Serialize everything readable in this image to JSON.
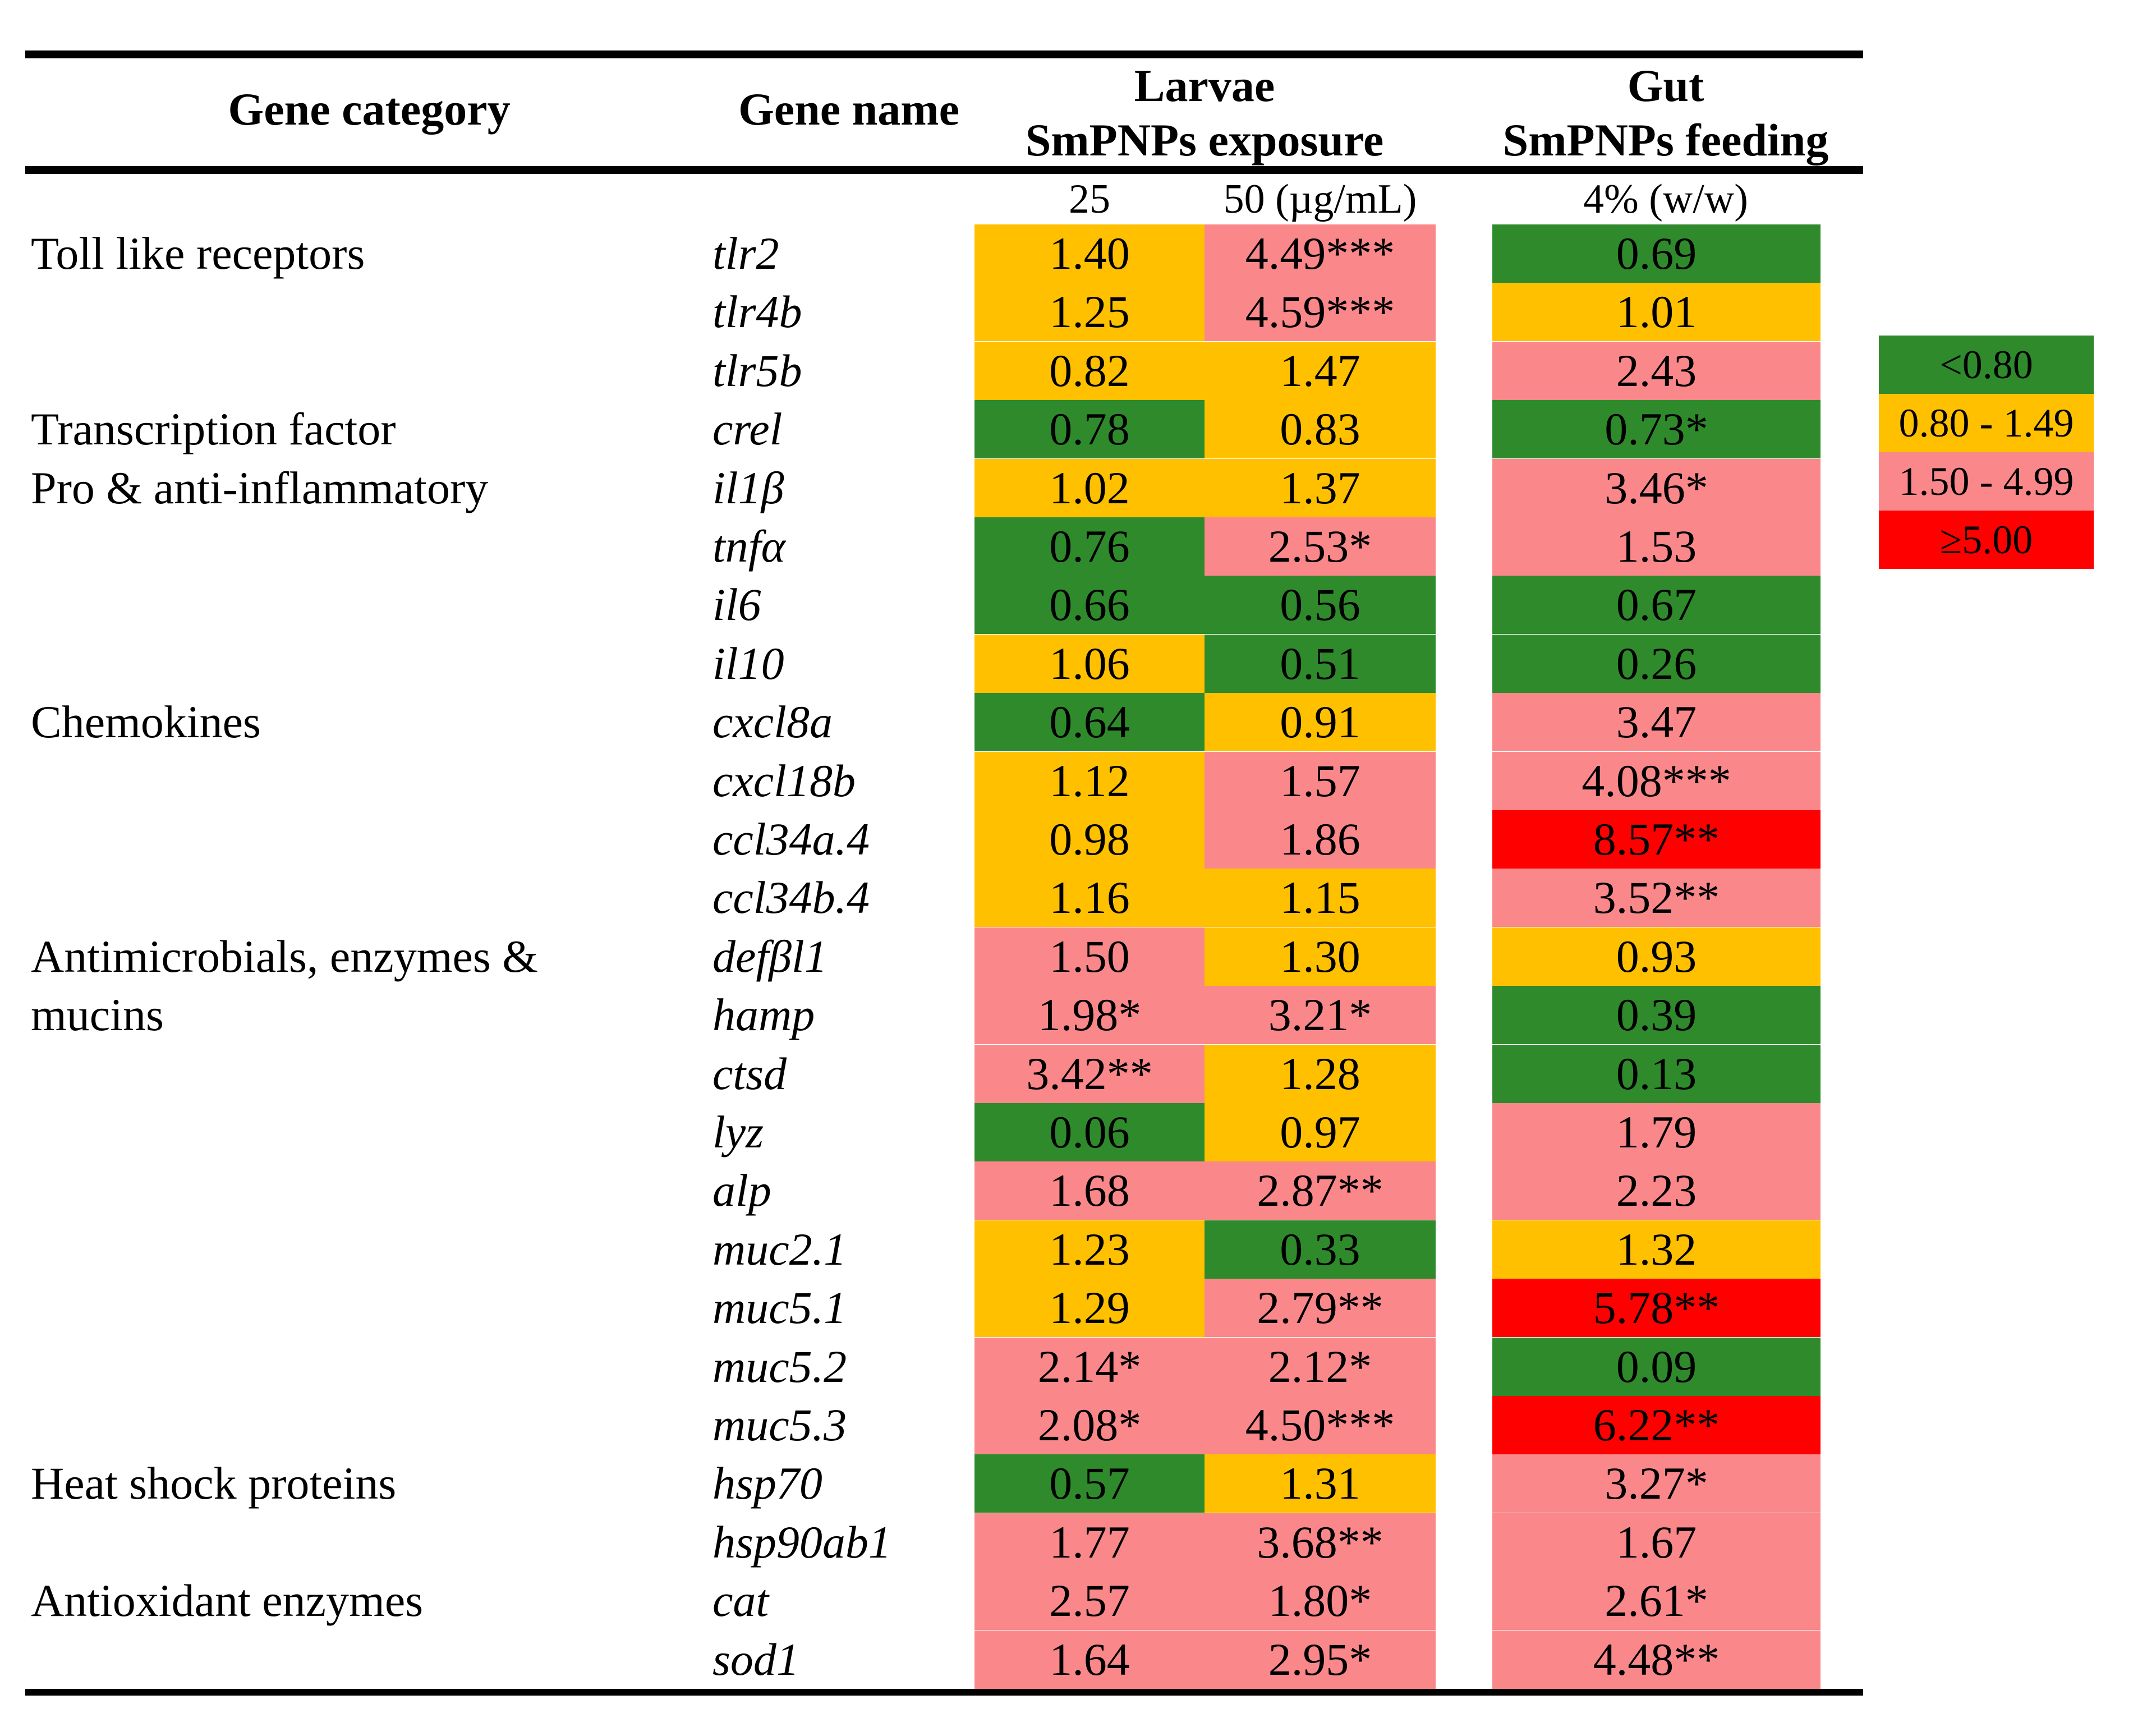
{
  "header": {
    "col_category": "Gene category",
    "col_gene": "Gene name",
    "group1_title": "Larvae",
    "group1_subtitle": "SmPNPs exposure",
    "group2_title": "Gut",
    "group2_subtitle": "SmPNPs feeding",
    "dose1": "25",
    "dose2": "50 (µg/mL)",
    "dose3": "4% (w/w)"
  },
  "palette": {
    "green": "#2F8A2B",
    "yellow": "#FFC000",
    "pink": "#FA888B",
    "red": "#FF0000"
  },
  "legend": {
    "items": [
      {
        "label": "<0.80",
        "color": "green"
      },
      {
        "label": "0.80 - 1.49",
        "color": "yellow"
      },
      {
        "label": "1.50 - 4.99",
        "color": "pink"
      },
      {
        "label": "≥5.00",
        "color": "red"
      }
    ]
  },
  "chart_data": {
    "type": "heatmap",
    "columns": [
      {
        "group": "Larvae",
        "treatment": "SmPNPs exposure",
        "dose": "25 µg/mL"
      },
      {
        "group": "Larvae",
        "treatment": "SmPNPs exposure",
        "dose": "50 µg/mL"
      },
      {
        "group": "Gut",
        "treatment": "SmPNPs feeding",
        "dose": "4% (w/w)"
      }
    ],
    "color_bins": {
      "green": "<0.80",
      "yellow": "0.80 - 1.49",
      "pink": "1.50 - 4.99",
      "red": "≥5.00"
    },
    "rows": [
      {
        "category": "Toll like receptors",
        "gene": "tlr2",
        "cells": [
          {
            "text": "1.40",
            "value": 1.4,
            "bin": "yellow"
          },
          {
            "text": "4.49***",
            "value": 4.49,
            "bin": "pink"
          },
          {
            "text": "0.69",
            "value": 0.69,
            "bin": "green"
          }
        ]
      },
      {
        "category": "",
        "gene": "tlr4b",
        "cells": [
          {
            "text": "1.25",
            "value": 1.25,
            "bin": "yellow"
          },
          {
            "text": "4.59***",
            "value": 4.59,
            "bin": "pink"
          },
          {
            "text": "1.01",
            "value": 1.01,
            "bin": "yellow"
          }
        ]
      },
      {
        "category": "",
        "gene": "tlr5b",
        "cells": [
          {
            "text": "0.82",
            "value": 0.82,
            "bin": "yellow"
          },
          {
            "text": "1.47",
            "value": 1.47,
            "bin": "yellow"
          },
          {
            "text": "2.43",
            "value": 2.43,
            "bin": "pink"
          }
        ]
      },
      {
        "category": "Transcription factor",
        "gene": "crel",
        "cells": [
          {
            "text": "0.78",
            "value": 0.78,
            "bin": "green"
          },
          {
            "text": "0.83",
            "value": 0.83,
            "bin": "yellow"
          },
          {
            "text": "0.73*",
            "value": 0.73,
            "bin": "green"
          }
        ]
      },
      {
        "category": "Pro & anti-inflammatory",
        "gene": "il1β",
        "cells": [
          {
            "text": "1.02",
            "value": 1.02,
            "bin": "yellow"
          },
          {
            "text": "1.37",
            "value": 1.37,
            "bin": "yellow"
          },
          {
            "text": "3.46*",
            "value": 3.46,
            "bin": "pink"
          }
        ]
      },
      {
        "category": "",
        "gene": "tnfα",
        "cells": [
          {
            "text": "0.76",
            "value": 0.76,
            "bin": "green"
          },
          {
            "text": "2.53*",
            "value": 2.53,
            "bin": "pink"
          },
          {
            "text": "1.53",
            "value": 1.53,
            "bin": "pink"
          }
        ]
      },
      {
        "category": "",
        "gene": "il6",
        "cells": [
          {
            "text": "0.66",
            "value": 0.66,
            "bin": "green"
          },
          {
            "text": "0.56",
            "value": 0.56,
            "bin": "green"
          },
          {
            "text": "0.67",
            "value": 0.67,
            "bin": "green"
          }
        ]
      },
      {
        "category": "",
        "gene": "il10",
        "cells": [
          {
            "text": "1.06",
            "value": 1.06,
            "bin": "yellow"
          },
          {
            "text": "0.51",
            "value": 0.51,
            "bin": "green"
          },
          {
            "text": "0.26",
            "value": 0.26,
            "bin": "green"
          }
        ]
      },
      {
        "category": "Chemokines",
        "gene": "cxcl8a",
        "cells": [
          {
            "text": "0.64",
            "value": 0.64,
            "bin": "green"
          },
          {
            "text": "0.91",
            "value": 0.91,
            "bin": "yellow"
          },
          {
            "text": "3.47",
            "value": 3.47,
            "bin": "pink"
          }
        ]
      },
      {
        "category": "",
        "gene": "cxcl18b",
        "cells": [
          {
            "text": "1.12",
            "value": 1.12,
            "bin": "yellow"
          },
          {
            "text": "1.57",
            "value": 1.57,
            "bin": "pink"
          },
          {
            "text": "4.08***",
            "value": 4.08,
            "bin": "pink"
          }
        ]
      },
      {
        "category": "",
        "gene": "ccl34a.4",
        "cells": [
          {
            "text": "0.98",
            "value": 0.98,
            "bin": "yellow"
          },
          {
            "text": "1.86",
            "value": 1.86,
            "bin": "pink"
          },
          {
            "text": "8.57**",
            "value": 8.57,
            "bin": "red"
          }
        ]
      },
      {
        "category": "",
        "gene": "ccl34b.4",
        "cells": [
          {
            "text": "1.16",
            "value": 1.16,
            "bin": "yellow"
          },
          {
            "text": "1.15",
            "value": 1.15,
            "bin": "yellow"
          },
          {
            "text": "3.52**",
            "value": 3.52,
            "bin": "pink"
          }
        ]
      },
      {
        "category": "Antimicrobials, enzymes &",
        "gene": "defβl1",
        "cells": [
          {
            "text": "1.50",
            "value": 1.5,
            "bin": "pink"
          },
          {
            "text": "1.30",
            "value": 1.3,
            "bin": "yellow"
          },
          {
            "text": "0.93",
            "value": 0.93,
            "bin": "yellow"
          }
        ]
      },
      {
        "category": "mucins",
        "gene": "hamp",
        "cells": [
          {
            "text": "1.98*",
            "value": 1.98,
            "bin": "pink"
          },
          {
            "text": "3.21*",
            "value": 3.21,
            "bin": "pink"
          },
          {
            "text": "0.39",
            "value": 0.39,
            "bin": "green"
          }
        ]
      },
      {
        "category": "",
        "gene": "ctsd",
        "cells": [
          {
            "text": "3.42**",
            "value": 3.42,
            "bin": "pink"
          },
          {
            "text": "1.28",
            "value": 1.28,
            "bin": "yellow"
          },
          {
            "text": "0.13",
            "value": 0.13,
            "bin": "green"
          }
        ]
      },
      {
        "category": "",
        "gene": "lyz",
        "cells": [
          {
            "text": "0.06",
            "value": 0.06,
            "bin": "green"
          },
          {
            "text": "0.97",
            "value": 0.97,
            "bin": "yellow"
          },
          {
            "text": "1.79",
            "value": 1.79,
            "bin": "pink"
          }
        ]
      },
      {
        "category": "",
        "gene": "alp",
        "cells": [
          {
            "text": "1.68",
            "value": 1.68,
            "bin": "pink"
          },
          {
            "text": "2.87**",
            "value": 2.87,
            "bin": "pink"
          },
          {
            "text": "2.23",
            "value": 2.23,
            "bin": "pink"
          }
        ]
      },
      {
        "category": "",
        "gene": "muc2.1",
        "cells": [
          {
            "text": "1.23",
            "value": 1.23,
            "bin": "yellow"
          },
          {
            "text": "0.33",
            "value": 0.33,
            "bin": "green"
          },
          {
            "text": "1.32",
            "value": 1.32,
            "bin": "yellow"
          }
        ]
      },
      {
        "category": "",
        "gene": "muc5.1",
        "cells": [
          {
            "text": "1.29",
            "value": 1.29,
            "bin": "yellow"
          },
          {
            "text": "2.79**",
            "value": 2.79,
            "bin": "pink"
          },
          {
            "text": "5.78**",
            "value": 5.78,
            "bin": "red"
          }
        ]
      },
      {
        "category": "",
        "gene": "muc5.2",
        "cells": [
          {
            "text": "2.14*",
            "value": 2.14,
            "bin": "pink"
          },
          {
            "text": "2.12*",
            "value": 2.12,
            "bin": "pink"
          },
          {
            "text": "0.09",
            "value": 0.09,
            "bin": "green"
          }
        ]
      },
      {
        "category": "",
        "gene": "muc5.3",
        "cells": [
          {
            "text": "2.08*",
            "value": 2.08,
            "bin": "pink"
          },
          {
            "text": "4.50***",
            "value": 4.5,
            "bin": "pink"
          },
          {
            "text": "6.22**",
            "value": 6.22,
            "bin": "red"
          }
        ]
      },
      {
        "category": "Heat shock proteins",
        "gene": "hsp70",
        "cells": [
          {
            "text": "0.57",
            "value": 0.57,
            "bin": "green"
          },
          {
            "text": "1.31",
            "value": 1.31,
            "bin": "yellow"
          },
          {
            "text": "3.27*",
            "value": 3.27,
            "bin": "pink"
          }
        ]
      },
      {
        "category": "",
        "gene": "hsp90ab1",
        "cells": [
          {
            "text": "1.77",
            "value": 1.77,
            "bin": "pink"
          },
          {
            "text": "3.68**",
            "value": 3.68,
            "bin": "pink"
          },
          {
            "text": "1.67",
            "value": 1.67,
            "bin": "pink"
          }
        ]
      },
      {
        "category": "Antioxidant enzymes",
        "gene": "cat",
        "cells": [
          {
            "text": "2.57",
            "value": 2.57,
            "bin": "pink"
          },
          {
            "text": "1.80*",
            "value": 1.8,
            "bin": "pink"
          },
          {
            "text": "2.61*",
            "value": 2.61,
            "bin": "pink"
          }
        ]
      },
      {
        "category": "",
        "gene": "sod1",
        "cells": [
          {
            "text": "1.64",
            "value": 1.64,
            "bin": "pink"
          },
          {
            "text": "2.95*",
            "value": 2.95,
            "bin": "pink"
          },
          {
            "text": "4.48**",
            "value": 4.48,
            "bin": "pink"
          }
        ]
      }
    ]
  }
}
